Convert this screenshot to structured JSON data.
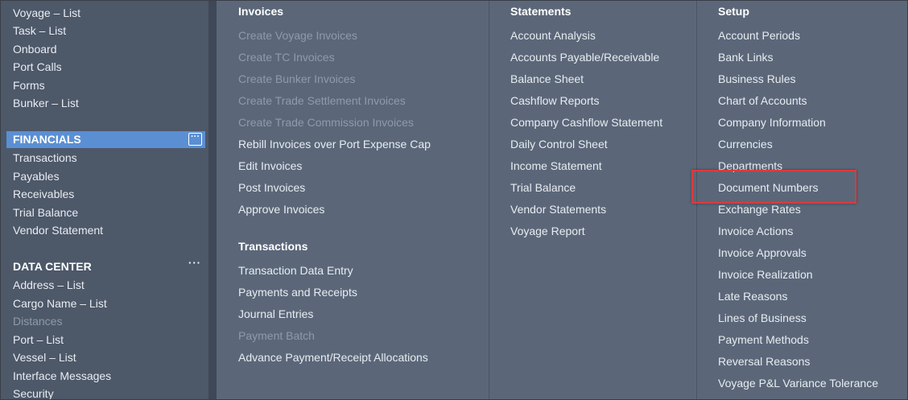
{
  "sidebar": {
    "top_items": [
      {
        "label": "Voyage – List"
      },
      {
        "label": "Task – List"
      },
      {
        "label": "Onboard"
      },
      {
        "label": "Port Calls"
      },
      {
        "label": "Forms"
      },
      {
        "label": "Bunker – List"
      }
    ],
    "sections": [
      {
        "title": "FINANCIALS",
        "selected": true,
        "items": [
          {
            "label": "Transactions"
          },
          {
            "label": "Payables"
          },
          {
            "label": "Receivables"
          },
          {
            "label": "Trial Balance"
          },
          {
            "label": "Vendor Statement"
          }
        ]
      },
      {
        "title": "DATA CENTER",
        "items": [
          {
            "label": "Address – List"
          },
          {
            "label": "Cargo Name – List"
          },
          {
            "label": "Distances",
            "disabled": true
          },
          {
            "label": "Port – List"
          },
          {
            "label": "Vessel – List"
          },
          {
            "label": "Interface Messages"
          },
          {
            "label": "Security"
          }
        ]
      }
    ]
  },
  "menu_columns": [
    {
      "groups": [
        {
          "title": "Invoices",
          "items": [
            {
              "label": "Create Voyage Invoices",
              "disabled": true
            },
            {
              "label": "Create TC Invoices",
              "disabled": true
            },
            {
              "label": "Create Bunker Invoices",
              "disabled": true
            },
            {
              "label": "Create Trade Settlement Invoices",
              "disabled": true
            },
            {
              "label": "Create Trade Commission Invoices",
              "disabled": true
            },
            {
              "label": "Rebill Invoices over Port Expense Cap"
            },
            {
              "label": "Edit Invoices"
            },
            {
              "label": "Post Invoices"
            },
            {
              "label": "Approve Invoices"
            }
          ]
        },
        {
          "title": "Transactions",
          "items": [
            {
              "label": "Transaction Data Entry"
            },
            {
              "label": "Payments and Receipts"
            },
            {
              "label": "Journal Entries"
            },
            {
              "label": "Payment Batch",
              "disabled": true
            },
            {
              "label": "Advance Payment/Receipt Allocations"
            }
          ]
        }
      ]
    },
    {
      "groups": [
        {
          "title": "Statements",
          "items": [
            {
              "label": "Account Analysis"
            },
            {
              "label": "Accounts Payable/Receivable"
            },
            {
              "label": "Balance Sheet"
            },
            {
              "label": "Cashflow Reports"
            },
            {
              "label": "Company Cashflow Statement"
            },
            {
              "label": "Daily Control Sheet"
            },
            {
              "label": "Income Statement"
            },
            {
              "label": "Trial Balance"
            },
            {
              "label": "Vendor Statements"
            },
            {
              "label": "Voyage Report"
            }
          ]
        }
      ]
    },
    {
      "groups": [
        {
          "title": "Setup",
          "items": [
            {
              "label": "Account Periods"
            },
            {
              "label": "Bank Links"
            },
            {
              "label": "Business Rules"
            },
            {
              "label": "Chart of Accounts"
            },
            {
              "label": "Company Information"
            },
            {
              "label": "Currencies"
            },
            {
              "label": "Departments"
            },
            {
              "label": "Document Numbers",
              "highlighted": true
            },
            {
              "label": "Exchange Rates"
            },
            {
              "label": "Invoice Actions"
            },
            {
              "label": "Invoice Approvals"
            },
            {
              "label": "Invoice Realization"
            },
            {
              "label": "Late Reasons"
            },
            {
              "label": "Lines of Business"
            },
            {
              "label": "Payment Methods"
            },
            {
              "label": "Reversal Reasons"
            },
            {
              "label": "Voyage P&L Variance Tolerance"
            }
          ]
        }
      ]
    }
  ]
}
